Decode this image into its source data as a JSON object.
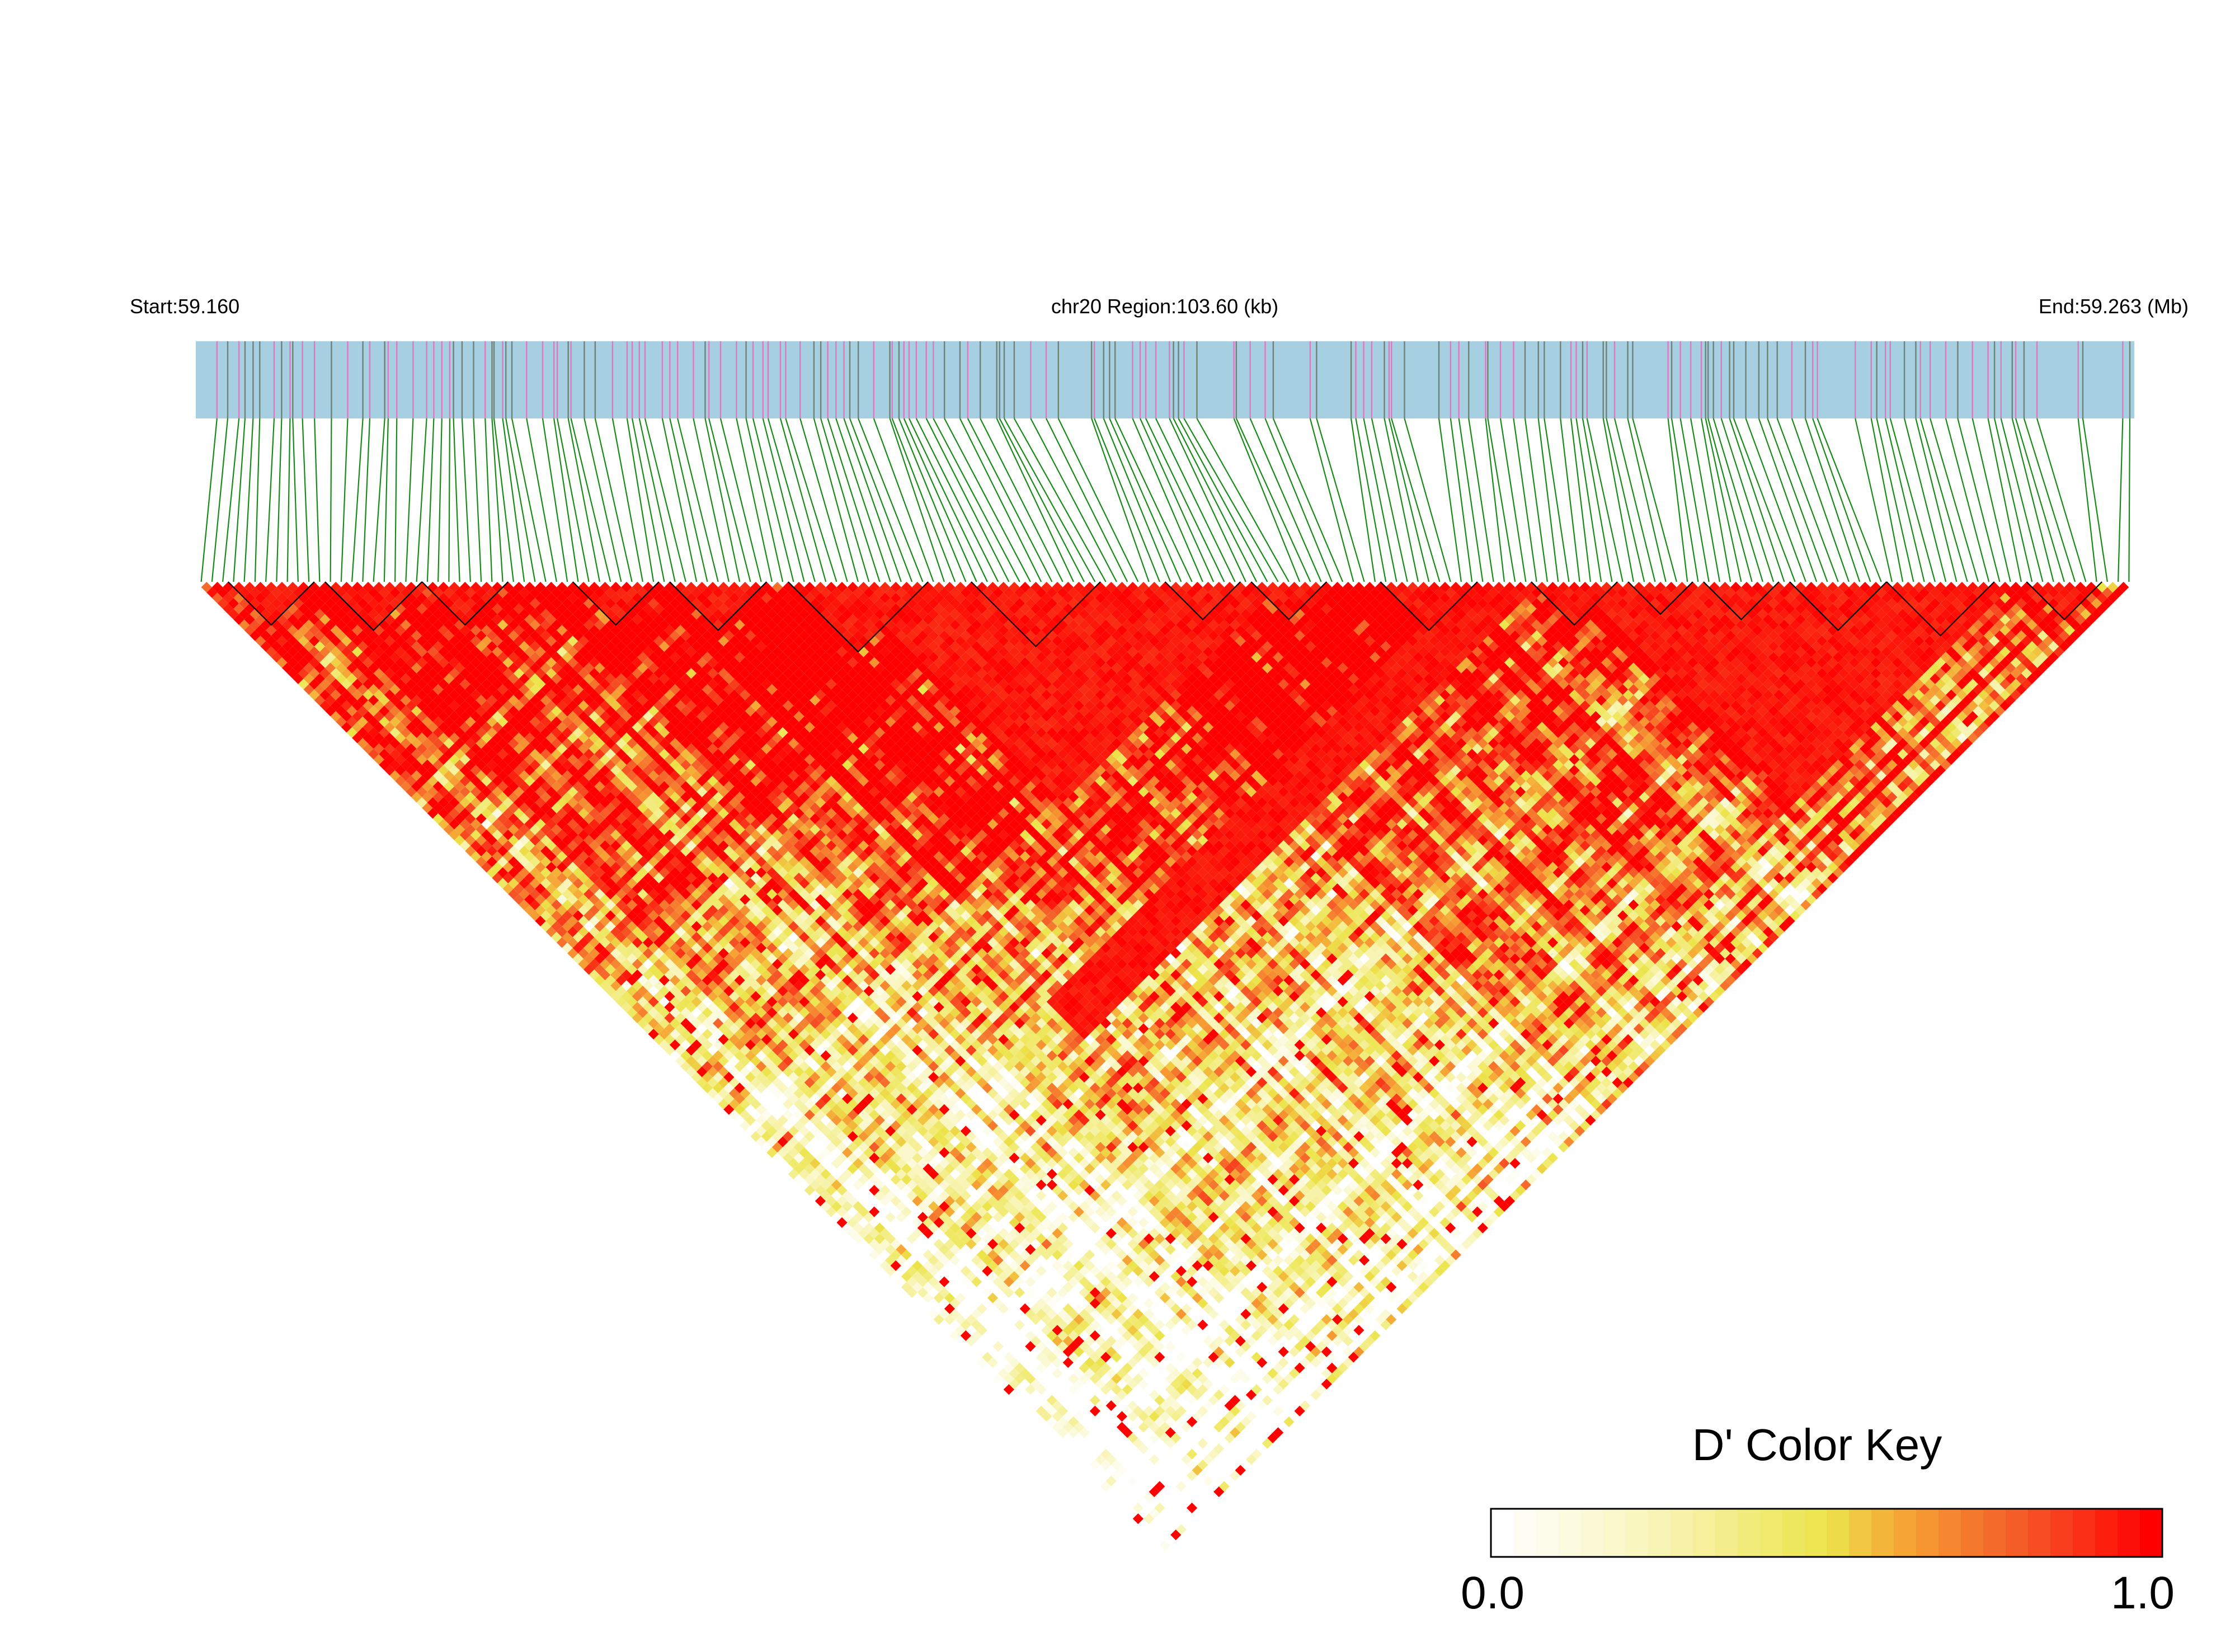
{
  "header": {
    "start_label": "Start:59.160",
    "region_label": "chr20 Region:103.60 (kb)",
    "end_label": "End:59.263 (Mb)"
  },
  "color_key": {
    "title": "D' Color Key",
    "min_label": "0.0",
    "max_label": "1.0",
    "gradient": [
      "#ffffff",
      "#f7f3a8",
      "#ece44a",
      "#f6a435",
      "#f56a2a",
      "#ff1a0a",
      "#ff0000"
    ]
  },
  "colors": {
    "gene_track_bg": "#a6cfe2",
    "snp_tick_pink": "#e078c0",
    "snp_tick_gray": "#6e8278",
    "connector": "#178a17",
    "heatmap_high": "#ff0000",
    "block_outline": "#000000"
  },
  "chart_data": {
    "type": "heatmap",
    "title": "chr20 Region:103.60 (kb)",
    "region": {
      "chromosome": "chr20",
      "start_mb": 59.16,
      "end_mb": 59.263,
      "length_kb": 103.6
    },
    "metric": "D'",
    "value_range": [
      0.0,
      1.0
    ],
    "n_snps": 180,
    "description_note": "Pairwise LD (D') triangle; strong LD blocks along top diagonal and a long high-D' band from lower-left toward upper-right.",
    "ld_blocks_marked": 18
  }
}
